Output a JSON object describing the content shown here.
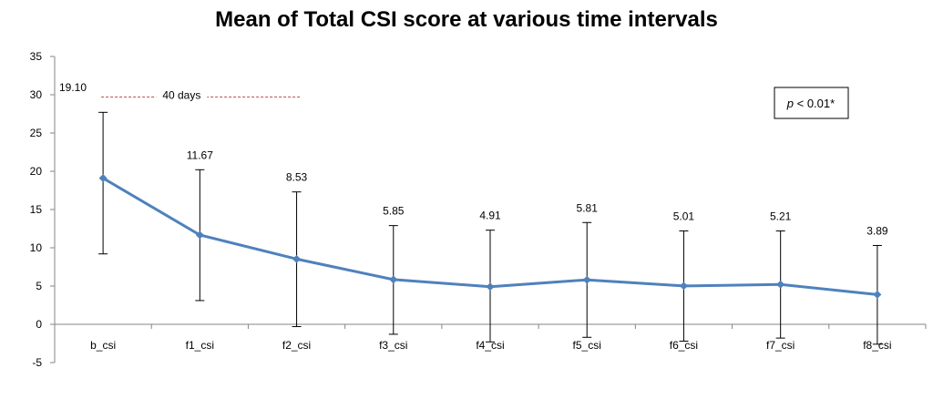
{
  "chart_data": {
    "type": "line",
    "title": "Mean of Total CSI score at various time intervals",
    "xlabel": "",
    "ylabel": "",
    "ylim": [
      -5,
      35
    ],
    "yticks": [
      -5,
      0,
      5,
      10,
      15,
      20,
      25,
      30,
      35
    ],
    "categories": [
      "b_csi",
      "f1_csi",
      "f2_csi",
      "f3_csi",
      "f4_csi",
      "f5_csi",
      "f6_csi",
      "f7_csi",
      "f8_csi"
    ],
    "series": [
      {
        "values": [
          19.1,
          11.67,
          8.53,
          5.85,
          4.91,
          5.81,
          5.01,
          5.21,
          3.89
        ],
        "data_labels": [
          "19.10",
          "11.67",
          "8.53",
          "5.85",
          "4.91",
          "5.81",
          "5.01",
          "5.21",
          "3.89"
        ],
        "error_upper": [
          27.7,
          20.2,
          17.3,
          12.9,
          12.3,
          13.3,
          12.2,
          12.2,
          10.3
        ],
        "error_lower": [
          9.2,
          3.1,
          -0.3,
          -1.3,
          -2.3,
          -1.7,
          -2.2,
          -1.8,
          -2.6
        ],
        "color": "#4f81bd"
      }
    ],
    "grid": false,
    "annotations": {
      "interval_label": "40 days",
      "interval_from": "b_csi",
      "interval_to": "f2_csi",
      "interval_y": 29.7,
      "interval_color": "#c0504d",
      "significance_p": "p",
      "significance_rest": " < 0.01*"
    }
  }
}
